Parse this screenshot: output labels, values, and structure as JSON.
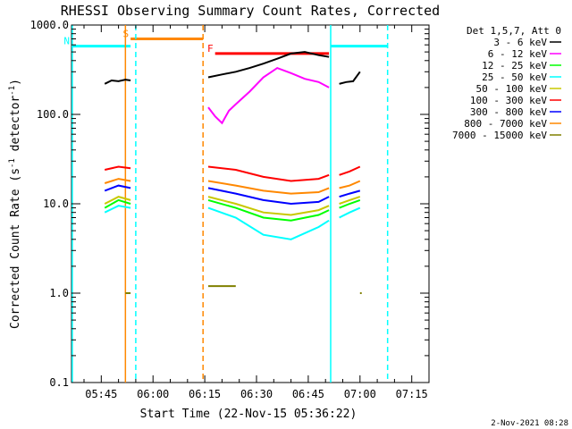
{
  "chart_data": {
    "type": "line",
    "title": "RHESSI Observing Summary Count Rates, Corrected",
    "xlabel": "Start Time (22-Nov-15 05:36:22)",
    "ylabel": "Corrected Count Rate (s⁻¹ detector⁻¹)",
    "ylabel_main": "Corrected Count Rate (s",
    "ylabel_sup1": "-1",
    "ylabel_mid": " detector",
    "ylabel_sup2": "-1",
    "ylabel_end": ")",
    "x_ticks": [
      "05:45",
      "06:00",
      "06:15",
      "06:30",
      "06:45",
      "07:00",
      "07:15"
    ],
    "x_tick_minutes": [
      45,
      60,
      75,
      90,
      105,
      120,
      135
    ],
    "xlim_minutes": [
      36.37,
      140.0
    ],
    "y_scale": "log",
    "ylim": [
      0.1,
      1000
    ],
    "y_ticks": [
      0.1,
      1,
      10,
      100,
      1000
    ],
    "y_tick_labels": [
      "0.1",
      "1.0",
      "10.0",
      "100.0",
      "1000.0"
    ],
    "legend_title": "Det 1,5,7, Att 0",
    "legend_placement": "right",
    "series": [
      {
        "name": "3 - 6 keV",
        "color": "#000000",
        "segments": [
          {
            "x": [
              46,
              48,
              50,
              52,
              53.5
            ],
            "y": [
              220,
              240,
              235,
              245,
              240
            ]
          },
          {
            "x": [
              76,
              80,
              84,
              88,
              92,
              96,
              100,
              104,
              108,
              111
            ],
            "y": [
              260,
              280,
              300,
              330,
              370,
              420,
              480,
              500,
              460,
              440
            ]
          },
          {
            "x": [
              114,
              116,
              118,
              120
            ],
            "y": [
              220,
              230,
              235,
              300
            ]
          }
        ]
      },
      {
        "name": "6 - 12 keV",
        "color": "#ff00ff",
        "segments": [
          {
            "x": [
              76,
              78,
              80,
              82,
              84,
              88,
              92,
              96,
              100,
              104,
              108,
              111
            ],
            "y": [
              120,
              95,
              80,
              110,
              130,
              180,
              260,
              330,
              290,
              250,
              230,
              200
            ]
          }
        ]
      },
      {
        "name": "12 - 25 keV",
        "color": "#00ff00",
        "segments": [
          {
            "x": [
              46,
              50,
              53.5
            ],
            "y": [
              9,
              11,
              10
            ]
          },
          {
            "x": [
              76,
              84,
              92,
              100,
              108,
              111
            ],
            "y": [
              11,
              9,
              7,
              6.5,
              7.5,
              8.5
            ]
          },
          {
            "x": [
              114,
              117,
              120
            ],
            "y": [
              9,
              10,
              11
            ]
          }
        ]
      },
      {
        "name": "25 - 50 keV",
        "color": "#00ffff",
        "segments": [
          {
            "x": [
              46,
              50,
              53.5
            ],
            "y": [
              8,
              9.5,
              9
            ]
          },
          {
            "x": [
              76,
              84,
              92,
              100,
              108,
              111
            ],
            "y": [
              9,
              7,
              4.5,
              4,
              5.5,
              6.5
            ]
          },
          {
            "x": [
              114,
              117,
              120
            ],
            "y": [
              7,
              8,
              9
            ]
          }
        ]
      },
      {
        "name": "50 - 100 keV",
        "color": "#c8c800",
        "segments": [
          {
            "x": [
              46,
              50,
              53.5
            ],
            "y": [
              10,
              12,
              11
            ]
          },
          {
            "x": [
              76,
              84,
              92,
              100,
              108,
              111
            ],
            "y": [
              12,
              10,
              8,
              7.5,
              8.5,
              9.5
            ]
          },
          {
            "x": [
              114,
              117,
              120
            ],
            "y": [
              10,
              11,
              12
            ]
          }
        ]
      },
      {
        "name": "100 - 300 keV",
        "color": "#ff0000",
        "segments": [
          {
            "x": [
              46,
              50,
              53.5
            ],
            "y": [
              24,
              26,
              25
            ]
          },
          {
            "x": [
              76,
              84,
              92,
              100,
              108,
              111
            ],
            "y": [
              26,
              24,
              20,
              18,
              19,
              21
            ]
          },
          {
            "x": [
              114,
              117,
              120
            ],
            "y": [
              21,
              23,
              26
            ]
          }
        ]
      },
      {
        "name": "300 - 800 keV",
        "color": "#0000ff",
        "segments": [
          {
            "x": [
              46,
              50,
              53.5
            ],
            "y": [
              14,
              16,
              15
            ]
          },
          {
            "x": [
              76,
              84,
              92,
              100,
              108,
              111
            ],
            "y": [
              15,
              13,
              11,
              10,
              10.5,
              12
            ]
          },
          {
            "x": [
              114,
              117,
              120
            ],
            "y": [
              12,
              13,
              14
            ]
          }
        ]
      },
      {
        "name": "800 - 7000 keV",
        "color": "#ff8800",
        "segments": [
          {
            "x": [
              46,
              50,
              53.5
            ],
            "y": [
              17,
              19,
              18
            ]
          },
          {
            "x": [
              76,
              84,
              92,
              100,
              108,
              111
            ],
            "y": [
              18,
              16,
              14,
              13,
              13.5,
              15
            ]
          },
          {
            "x": [
              114,
              117,
              120
            ],
            "y": [
              15,
              16,
              18
            ]
          }
        ]
      },
      {
        "name": "7000 - 15000 keV",
        "color": "#808000",
        "segments": [
          {
            "x": [
              52,
              53.5
            ],
            "y": [
              1,
              1
            ]
          },
          {
            "x": [
              76,
              84
            ],
            "y": [
              1.2,
              1.2
            ]
          },
          {
            "x": [
              120,
              120.5
            ],
            "y": [
              1,
              1
            ]
          }
        ]
      }
    ],
    "annotations": [
      {
        "label": "S",
        "color": "#ff8800",
        "type": "solid-bar",
        "x_start": 53.5,
        "x_end": 74.5,
        "y": 700
      },
      {
        "label": "N",
        "color": "#00ffff",
        "type": "solid-bar",
        "x_start": 36.37,
        "x_end": 53.5,
        "y": 580
      },
      {
        "label": "F",
        "color": "#ff0000",
        "type": "solid-bar",
        "x_start": 78,
        "x_end": 111,
        "y": 480
      },
      {
        "label": "",
        "color": "#00ffff",
        "type": "solid-bar",
        "x_start": 111.5,
        "x_end": 128,
        "y": 580
      },
      {
        "label": "",
        "color": "#ff8800",
        "type": "solid-vline",
        "x": 52
      },
      {
        "label": "",
        "color": "#00ffff",
        "type": "dashed-vline",
        "x": 55
      },
      {
        "label": "",
        "color": "#ff8800",
        "type": "dashed-vline",
        "x": 74.5
      },
      {
        "label": "",
        "color": "#00ffff",
        "type": "solid-vline",
        "x": 111.5
      },
      {
        "label": "",
        "color": "#00ffff",
        "type": "dashed-vline",
        "x": 128
      },
      {
        "label": "",
        "color": "#00ffff",
        "type": "solid-vline",
        "x": 36.6
      }
    ]
  },
  "footer": {
    "date": "2-Nov-2021 08:28"
  }
}
